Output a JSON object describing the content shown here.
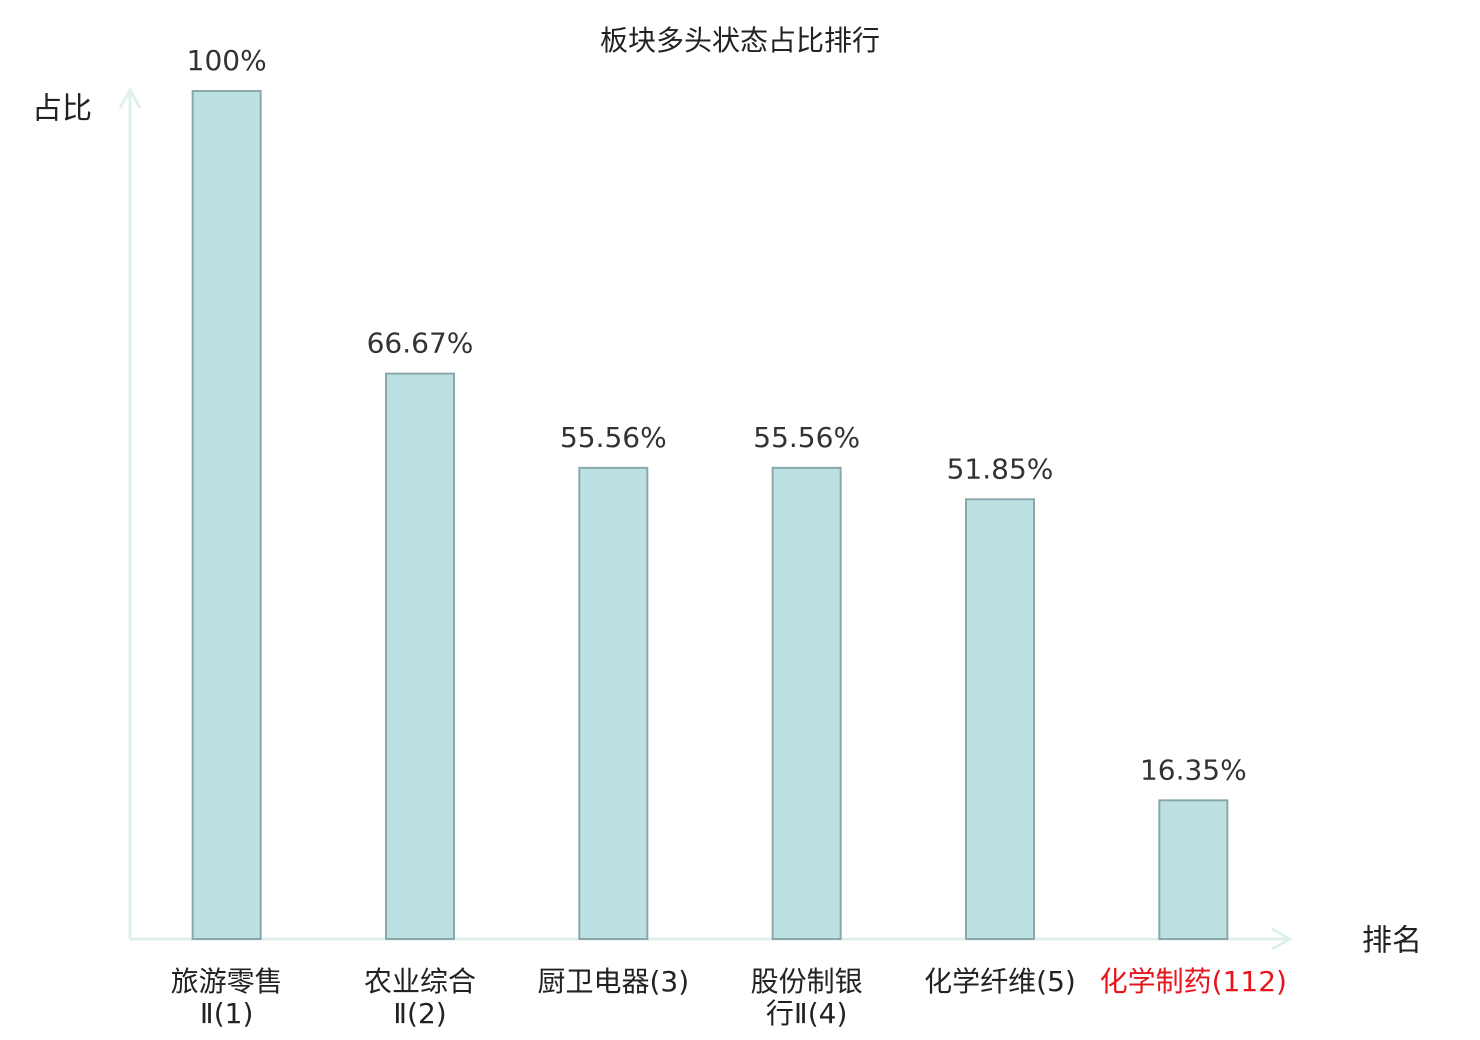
{
  "chart_data": {
    "type": "bar",
    "title": "板块多头状态占比排行",
    "y_label": "占比",
    "x_label": "排名",
    "categories": [
      "旅游零售\nⅡ(1)",
      "农业综合\nⅡ(2)",
      "厨卫电器(3)",
      "股份制银\n行Ⅱ(4)",
      "化学纤维(5)",
      "化学制药(112)"
    ],
    "label_colors": [
      "#222222",
      "#222222",
      "#222222",
      "#222222",
      "#222222",
      "#e8141b"
    ],
    "values": [
      100,
      66.67,
      55.56,
      55.56,
      51.85,
      16.35
    ],
    "value_labels": [
      "100%",
      "66.67%",
      "55.56%",
      "55.56%",
      "51.85%",
      "16.35%"
    ],
    "color": "#bde0e3",
    "edge_color": "#8aa8ab",
    "axis_color": "#dff1ee",
    "ylim": [
      0,
      100
    ],
    "grid": false
  }
}
